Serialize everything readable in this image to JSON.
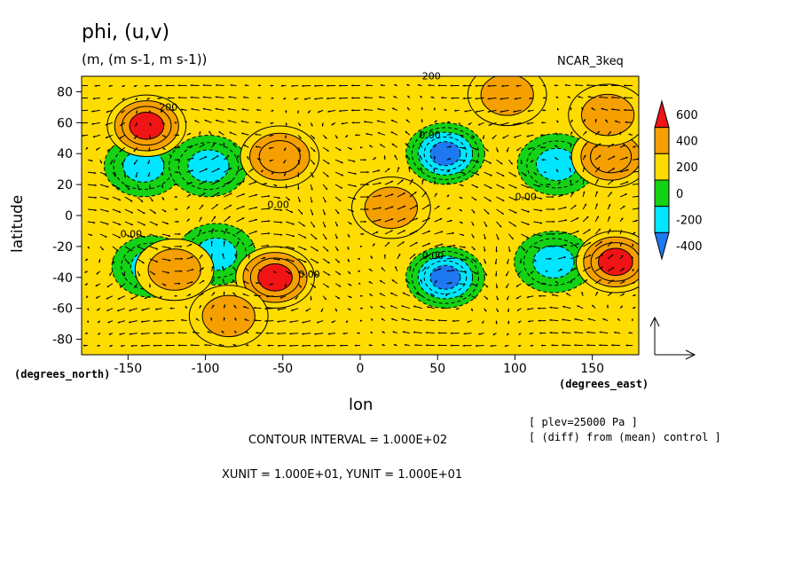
{
  "header": {
    "title": "phi, (u,v)",
    "units": "(m, (m s-1, m s-1))",
    "model": "NCAR_3keq"
  },
  "notes": {
    "plev": "[ plev=25000 Pa ]",
    "diff": "[ (diff) from (mean) control ]",
    "contour_interval": "CONTOUR INTERVAL = 1.000E+02",
    "vector_units": "XUNIT = 1.000E+01, YUNIT = 1.000E+01"
  },
  "chart_data": {
    "type": "heatmap",
    "xlabel": "lon",
    "ylabel": "latitude",
    "x_unit_label": "(degrees_east)",
    "y_unit_label": "(degrees_north)",
    "xlim": [
      -180,
      180
    ],
    "ylim": [
      -90,
      90
    ],
    "x_ticks": [
      -150,
      -100,
      -50,
      0,
      50,
      100,
      150
    ],
    "y_ticks": [
      -80,
      -60,
      -40,
      -20,
      0,
      20,
      40,
      60,
      80
    ],
    "x_tick_labels": [
      "-150",
      "-100",
      "-50",
      "0",
      "50",
      "100",
      "150"
    ],
    "y_tick_labels": [
      "-80",
      "-60",
      "-40",
      "-20",
      "0",
      "20",
      "40",
      "60",
      "80"
    ],
    "colorbar": {
      "levels": [
        -400,
        -200,
        0,
        200,
        400,
        600
      ],
      "labels": [
        "600",
        "400",
        "200",
        "0",
        "-200",
        "-400"
      ],
      "colors": [
        "#1e78f0",
        "#00e6ff",
        "#14d214",
        "#ffdc00",
        "#f5a000",
        "#f01414"
      ]
    },
    "contour_labels": [
      "200",
      "200",
      "0.00",
      "0.00",
      "0.00",
      "0.00",
      "0.00",
      "0.00",
      "0.00",
      "0.00",
      "-0.00",
      "200",
      "00"
    ],
    "anomalies": [
      {
        "lon": -140,
        "lat": 32,
        "value": -300
      },
      {
        "lon": -98,
        "lat": 32,
        "value": -300
      },
      {
        "lon": -52,
        "lat": 38,
        "value": 300
      },
      {
        "lon": -138,
        "lat": 58,
        "value": 400
      },
      {
        "lon": 55,
        "lat": 40,
        "value": -500
      },
      {
        "lon": 127,
        "lat": 33,
        "value": -300
      },
      {
        "lon": 162,
        "lat": 38,
        "value": 300
      },
      {
        "lon": 160,
        "lat": 65,
        "value": 200
      },
      {
        "lon": 95,
        "lat": 78,
        "value": 200
      },
      {
        "lon": 20,
        "lat": 5,
        "value": 200
      },
      {
        "lon": -135,
        "lat": -33,
        "value": -300
      },
      {
        "lon": -93,
        "lat": -25,
        "value": -300
      },
      {
        "lon": -55,
        "lat": -40,
        "value": 400
      },
      {
        "lon": -120,
        "lat": -35,
        "value": 200
      },
      {
        "lon": 55,
        "lat": -40,
        "value": -500
      },
      {
        "lon": 125,
        "lat": -30,
        "value": -300
      },
      {
        "lon": 165,
        "lat": -30,
        "value": 400
      },
      {
        "lon": -85,
        "lat": -65,
        "value": 200
      }
    ]
  }
}
